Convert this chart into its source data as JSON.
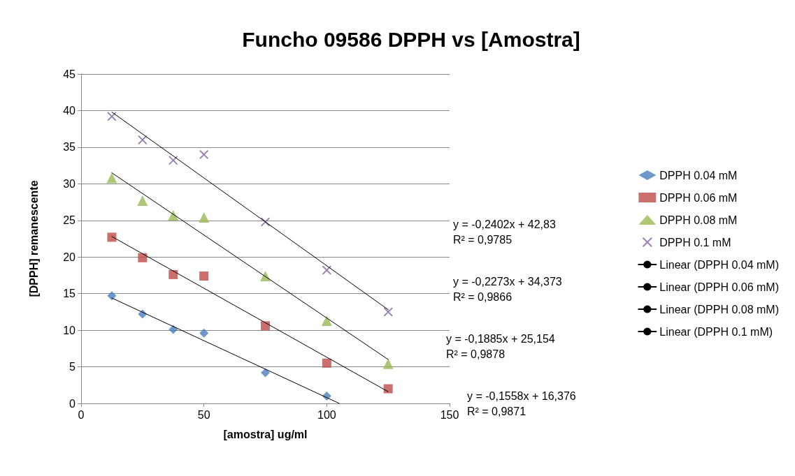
{
  "chart_data": {
    "type": "scatter",
    "title": "Funcho 09586 DPPH vs [Amostra]",
    "xlabel": "[amostra] ug/ml",
    "ylabel": "[DPPH] remanescente",
    "xlim": [
      0,
      150
    ],
    "xticks": [
      0,
      50,
      100,
      150
    ],
    "ylim": [
      0,
      45
    ],
    "yticks": [
      0,
      5,
      10,
      15,
      20,
      25,
      30,
      35,
      40,
      45
    ],
    "grid": "y",
    "legend": "right",
    "series": [
      {
        "name": "DPPH 0.04 mM",
        "type": "scatter",
        "marker": "diamond",
        "color": "#4a7ebb",
        "x": [
          12.5,
          25,
          37.5,
          50,
          75,
          100
        ],
        "values": [
          14.7,
          12.2,
          10.1,
          9.6,
          4.2,
          1.0
        ]
      },
      {
        "name": "DPPH 0.06 mM",
        "type": "scatter",
        "marker": "square",
        "color": "#be4b48",
        "x": [
          12.5,
          25,
          37.5,
          50,
          75,
          100,
          125
        ],
        "values": [
          22.7,
          19.9,
          17.6,
          17.4,
          10.6,
          5.5,
          2.0
        ]
      },
      {
        "name": "DPPH 0.08 mM",
        "type": "scatter",
        "marker": "triangle",
        "color": "#98b954",
        "x": [
          12.5,
          25,
          37.5,
          50,
          75,
          100,
          125
        ],
        "values": [
          30.8,
          27.7,
          25.7,
          25.4,
          17.4,
          11.3,
          5.4
        ]
      },
      {
        "name": "DPPH 0.1 mM",
        "type": "scatter",
        "marker": "cross",
        "color": "#7d60a0",
        "x": [
          12.5,
          25,
          37.5,
          50,
          75,
          100,
          125
        ],
        "values": [
          39.2,
          36.0,
          33.2,
          34.0,
          24.8,
          18.2,
          12.5
        ]
      },
      {
        "name": "Linear (DPPH 0.04 mM)",
        "type": "line",
        "marker": "none",
        "line_style": "solid",
        "color": "#000000",
        "x": [
          12.5,
          105.1
        ],
        "values": [
          14.4,
          0
        ]
      },
      {
        "name": "Linear (DPPH 0.06 mM)",
        "type": "line",
        "marker": "none",
        "line_style": "solid",
        "color": "#000000",
        "x": [
          12.5,
          125
        ],
        "values": [
          22.8,
          1.6
        ]
      },
      {
        "name": "Linear (DPPH 0.08 mM)",
        "type": "line",
        "marker": "none",
        "line_style": "solid",
        "color": "#000000",
        "x": [
          12.5,
          125
        ],
        "values": [
          31.5,
          6.0
        ]
      },
      {
        "name": "Linear (DPPH 0.1 mM)",
        "type": "line",
        "marker": "none",
        "line_style": "solid",
        "color": "#000000",
        "x": [
          12.5,
          125
        ],
        "values": [
          39.8,
          12.8
        ]
      }
    ],
    "annotations": [
      "y = -0,2402x + 42,83\nR² = 0,9785",
      "y = -0,2273x + 34,373\nR² = 0,9866",
      "y = -0,1885x + 25,154\nR² = 0,9878",
      "y = -0,1558x + 16,376\nR² = 0,9871"
    ]
  }
}
